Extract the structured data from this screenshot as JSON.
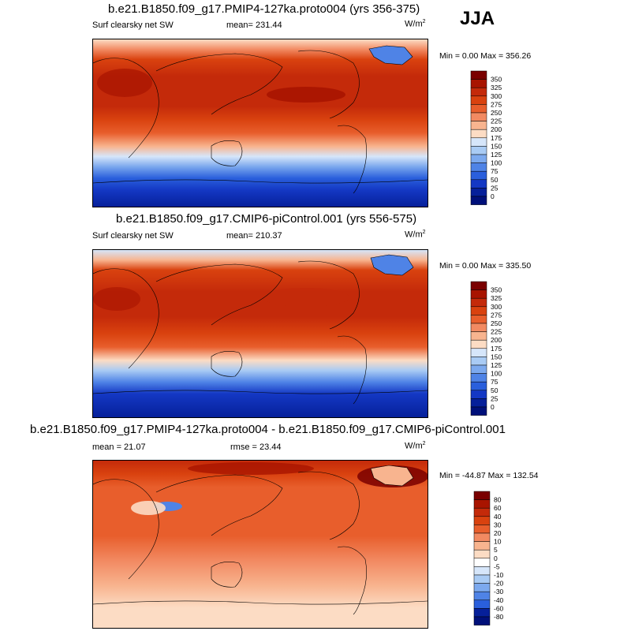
{
  "season": "JJA",
  "panels": [
    {
      "title": "b.e21.B1850.f09_g17.PMIP4-127ka.proto004 (yrs 356-375)",
      "left_label": "Surf clearsky net SW",
      "center_label": "mean= 231.44",
      "units": "W/m",
      "units_sup": "2",
      "minmax": "Min =   0.00 Max = 356.26"
    },
    {
      "title": "b.e21.B1850.f09_g17.CMIP6-piControl.001 (yrs 556-575)",
      "left_label": "Surf clearsky net SW",
      "center_label": "mean= 210.37",
      "units": "W/m",
      "units_sup": "2",
      "minmax": "Min =   0.00 Max = 335.50"
    },
    {
      "title": "b.e21.B1850.f09_g17.PMIP4-127ka.proto004 - b.e21.B1850.f09_g17.CMIP6-piControl.001",
      "left_label": "mean =  21.07",
      "center_label": "rmse =  23.44",
      "units": "W/m",
      "units_sup": "2",
      "minmax": "Min = -44.87 Max = 132.54"
    }
  ],
  "chart_data": [
    {
      "type": "heatmap",
      "field": "Surf clearsky net SW",
      "mean": 231.44,
      "min": 0.0,
      "max": 356.26,
      "colorbar": {
        "levels": [
          "350",
          "325",
          "300",
          "275",
          "250",
          "225",
          "200",
          "175",
          "150",
          "125",
          "100",
          "75",
          "50",
          "25",
          "0"
        ],
        "colors": [
          "#7a0000",
          "#a81400",
          "#c42a0a",
          "#d9420f",
          "#e85e2c",
          "#f28a62",
          "#f8b48f",
          "#fcdcc4",
          "#d6e6fa",
          "#a9cbf4",
          "#7ca9ee",
          "#4f83e6",
          "#2a5fdc",
          "#1438c4",
          "#06209a",
          "#00107a"
        ]
      }
    },
    {
      "type": "heatmap",
      "field": "Surf clearsky net SW",
      "mean": 210.37,
      "min": 0.0,
      "max": 335.5,
      "colorbar": {
        "levels": [
          "350",
          "325",
          "300",
          "275",
          "250",
          "225",
          "200",
          "175",
          "150",
          "125",
          "100",
          "75",
          "50",
          "25",
          "0"
        ],
        "colors": [
          "#7a0000",
          "#a81400",
          "#c42a0a",
          "#d9420f",
          "#e85e2c",
          "#f28a62",
          "#f8b48f",
          "#fcdcc4",
          "#d6e6fa",
          "#a9cbf4",
          "#7ca9ee",
          "#4f83e6",
          "#2a5fdc",
          "#1438c4",
          "#06209a",
          "#00107a"
        ]
      }
    },
    {
      "type": "heatmap",
      "field": "difference",
      "mean": 21.07,
      "rmse": 23.44,
      "min": -44.87,
      "max": 132.54,
      "colorbar": {
        "levels": [
          "80",
          "60",
          "40",
          "30",
          "20",
          "10",
          "5",
          "0",
          "-5",
          "-10",
          "-20",
          "-30",
          "-40",
          "-60",
          "-80"
        ],
        "colors": [
          "#7a0000",
          "#a81400",
          "#c42a0a",
          "#d9420f",
          "#e85e2c",
          "#f28a62",
          "#f8b48f",
          "#fcdcc4",
          "#ffffff",
          "#d6e6fa",
          "#a9cbf4",
          "#7ca9ee",
          "#4f83e6",
          "#2a5fdc",
          "#06209a",
          "#00107a"
        ]
      }
    }
  ]
}
